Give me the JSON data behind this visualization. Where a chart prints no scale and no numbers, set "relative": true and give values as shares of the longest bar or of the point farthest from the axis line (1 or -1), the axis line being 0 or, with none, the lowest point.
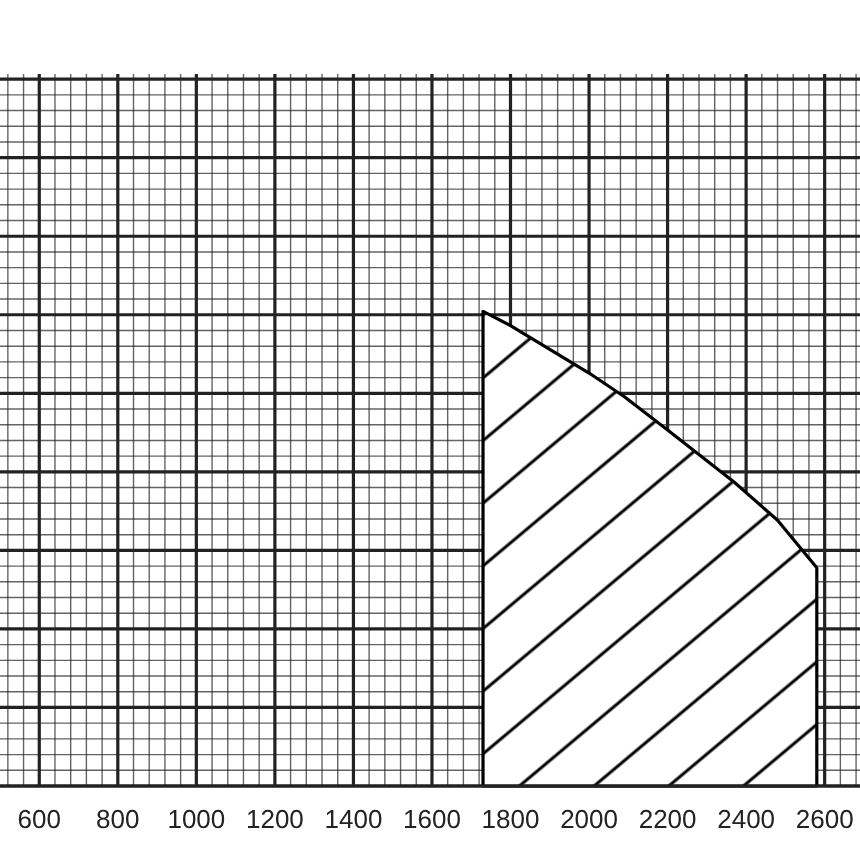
{
  "chart_data": {
    "type": "area",
    "relative": true,
    "x": [
      1730,
      1800,
      1900,
      2000,
      2090,
      2200,
      2370,
      2480,
      2580
    ],
    "values": [
      1,
      0.97,
      0.92,
      0.87,
      0.82,
      0.75,
      0.64,
      0.56,
      0.46
    ],
    "color": "#000000",
    "xlim": [
      500,
      2690
    ],
    "xticks": [
      600,
      800,
      1000,
      1200,
      1400,
      1600,
      1800,
      2000,
      2200,
      2400,
      2600
    ],
    "grid": true
  }
}
